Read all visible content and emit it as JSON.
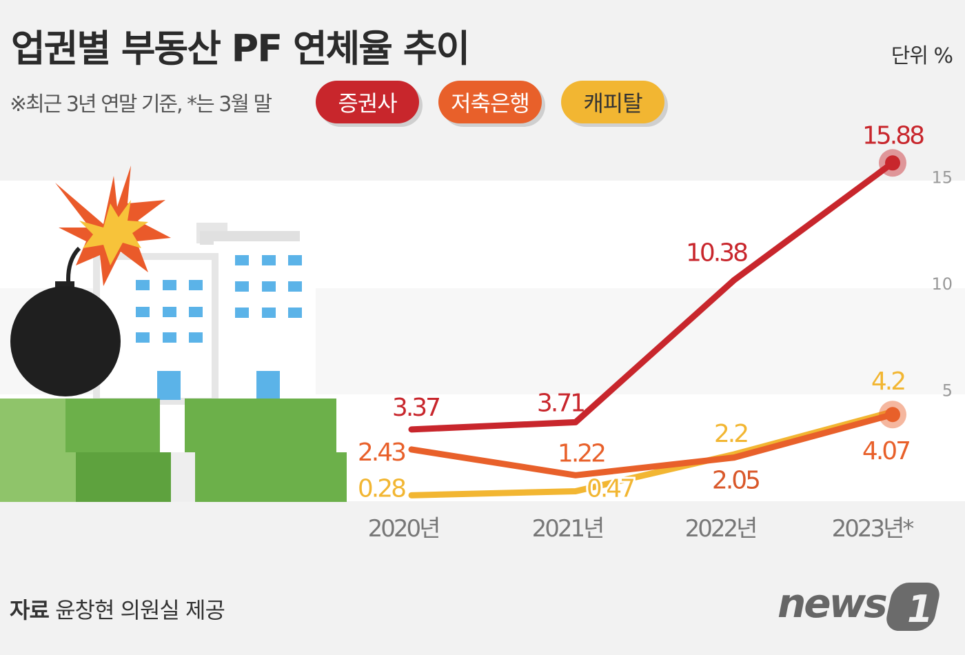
{
  "title": "업권별 부동산 PF 연체율 추이",
  "unit": "단위 %",
  "note": "※최근 3년 연말 기준, *는 3월 말",
  "source_label": "자료",
  "source_text": "윤창현 의원실 제공",
  "logo_text": "news1",
  "chart_data": {
    "type": "line",
    "title": "업권별 부동산 PF 연체율 추이",
    "ylabel": "단위 %",
    "categories": [
      "2020년",
      "2021년",
      "2022년",
      "2023년*"
    ],
    "ylim": [
      0,
      16
    ],
    "yticks": [
      5,
      10,
      15
    ],
    "grid": "alternating bands",
    "legend": "top",
    "series": [
      {
        "name": "증권사",
        "color": "#c8262c",
        "values": [
          3.37,
          3.71,
          10.38,
          15.88
        ],
        "labels": [
          "3.37",
          "3.71",
          "10.38",
          "15.88"
        ]
      },
      {
        "name": "저축은행",
        "color": "#e8602a",
        "values": [
          2.43,
          1.22,
          2.05,
          4.07
        ],
        "labels": [
          "2.43",
          "1.22",
          "2.05",
          "4.07"
        ]
      },
      {
        "name": "캐피탈",
        "color": "#f2b632",
        "values": [
          0.28,
          0.47,
          2.2,
          4.2
        ],
        "labels": [
          "0.28",
          "0.47",
          "2.2",
          "4.2"
        ]
      }
    ]
  }
}
